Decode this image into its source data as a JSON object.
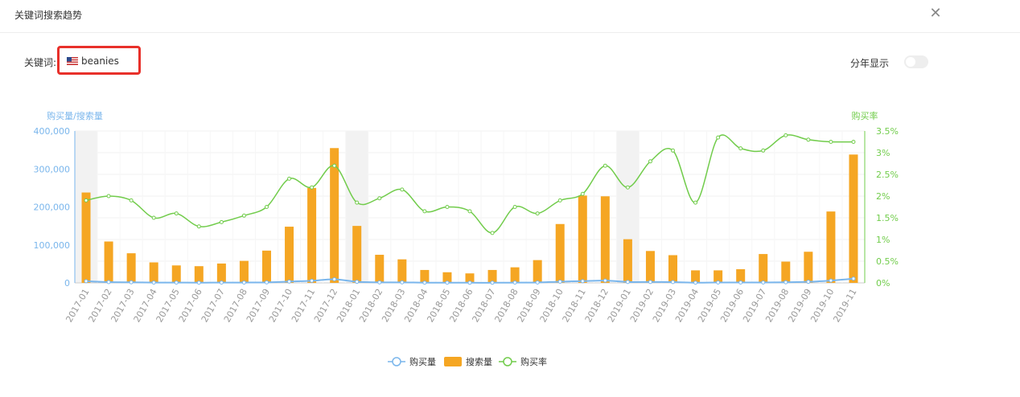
{
  "dialog": {
    "title": "关键词搜索趋势"
  },
  "filters": {
    "keyword_label": "关键词:",
    "keyword_value": "beanies",
    "flag_icon": "us-flag-icon",
    "year_toggle_label": "分年显示"
  },
  "colors": {
    "purchases": "#7ab6ec",
    "searches": "#f5a623",
    "rate": "#71cc4b"
  },
  "chart_data": {
    "type": "bar",
    "left_axis_title": "购买量/搜索量",
    "right_axis_title": "购买率",
    "ylim_left": [
      0,
      400000
    ],
    "ylim_right": [
      0,
      3.5
    ],
    "left_ticks": [
      "0",
      "100,000",
      "200,000",
      "300,000",
      "400,000"
    ],
    "right_ticks": [
      "0%",
      "0.5%",
      "1%",
      "1.5%",
      "2%",
      "2.5%",
      "3%",
      "3.5%"
    ],
    "categories": [
      "2017-01",
      "2017-02",
      "2017-03",
      "2017-04",
      "2017-05",
      "2017-06",
      "2017-07",
      "2017-08",
      "2017-09",
      "2017-10",
      "2017-11",
      "2017-12",
      "2018-01",
      "2018-02",
      "2018-03",
      "2018-04",
      "2018-05",
      "2018-06",
      "2018-07",
      "2018-08",
      "2018-09",
      "2018-10",
      "2018-11",
      "2018-12",
      "2019-01",
      "2019-02",
      "2019-03",
      "2019-04",
      "2019-05",
      "2019-06",
      "2019-07",
      "2019-08",
      "2019-09",
      "2019-10",
      "2019-11"
    ],
    "shaded_categories": [
      "2017-01",
      "2018-01",
      "2019-01"
    ],
    "series": [
      {
        "name": "购买量",
        "type": "line",
        "axis": "left",
        "values": [
          4500,
          2100,
          1500,
          900,
          800,
          600,
          800,
          900,
          1400,
          3500,
          5500,
          9500,
          2800,
          1400,
          1300,
          600,
          500,
          400,
          400,
          700,
          1100,
          3300,
          4600,
          6100,
          2500,
          2400,
          2200,
          600,
          1100,
          1100,
          1100,
          1700,
          2800,
          6100,
          11000
        ]
      },
      {
        "name": "搜索量",
        "type": "bar",
        "axis": "left",
        "values": [
          238000,
          109000,
          78000,
          54000,
          46000,
          44000,
          51000,
          58000,
          85000,
          148000,
          250000,
          355000,
          150000,
          74000,
          62000,
          34000,
          28000,
          25000,
          34000,
          41000,
          60000,
          155000,
          230000,
          228000,
          115000,
          84000,
          73000,
          33000,
          33000,
          36000,
          76000,
          56000,
          82000,
          188000,
          338000
        ]
      },
      {
        "name": "购买率",
        "type": "line",
        "axis": "right",
        "values": [
          1.9,
          2.0,
          1.9,
          1.5,
          1.6,
          1.3,
          1.4,
          1.55,
          1.75,
          2.4,
          2.2,
          2.7,
          1.85,
          1.95,
          2.15,
          1.65,
          1.75,
          1.65,
          1.15,
          1.75,
          1.6,
          1.9,
          2.05,
          2.7,
          2.2,
          2.8,
          3.05,
          1.85,
          3.35,
          3.1,
          3.05,
          3.4,
          3.3,
          3.25,
          3.25
        ]
      }
    ],
    "legend_position": "bottom"
  }
}
